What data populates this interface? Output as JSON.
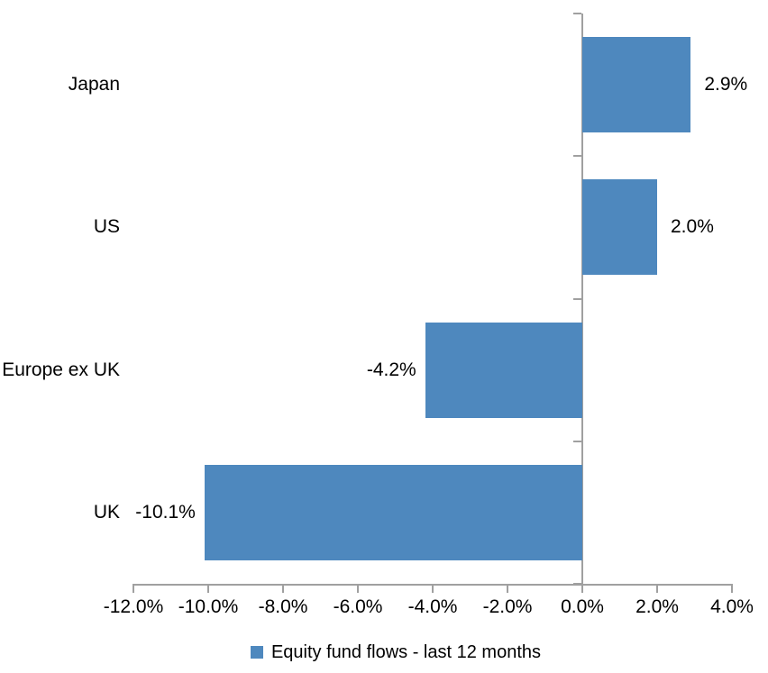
{
  "chart_data": {
    "type": "bar",
    "orientation": "horizontal",
    "title": "",
    "categories": [
      "Japan",
      "US",
      "Europe ex UK",
      "UK"
    ],
    "values": [
      2.9,
      2.0,
      -4.2,
      -10.1
    ],
    "data_labels": [
      "2.9%",
      "2.0%",
      "-4.2%",
      "-10.1%"
    ],
    "series": [
      {
        "name": "Equity fund flows - last 12 months",
        "values": [
          2.9,
          2.0,
          -4.2,
          -10.1
        ]
      }
    ],
    "xlabel": "",
    "ylabel": "",
    "xlim": [
      -12,
      4
    ],
    "x_tick_values": [
      -12,
      -10,
      -8,
      -6,
      -4,
      -2,
      0,
      2,
      4
    ],
    "x_tick_labels": [
      "-12.0%",
      "-10.0%",
      "-8.0%",
      "-6.0%",
      "-4.0%",
      "-2.0%",
      "0.0%",
      "2.0%",
      "4.0%"
    ],
    "grid": false,
    "legend_position": "bottom",
    "colors": {
      "bar": "#4E88BE",
      "axis": "#A0A0A0",
      "text": "#000000",
      "background": "#FFFFFF"
    }
  },
  "legend": {
    "label": "Equity fund flows - last 12 months"
  }
}
